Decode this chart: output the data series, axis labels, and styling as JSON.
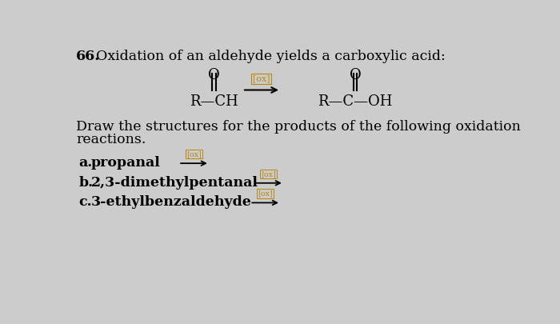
{
  "background_color": "#cccccc",
  "number_label": "66.",
  "title_text": "Oxidation of an aldehyde yields a carboxylic acid:",
  "title_fontsize": 12.5,
  "body_text_line1": "Draw the structures for the products of the following oxidation",
  "body_text_line2": "reactions.",
  "body_fontsize": 12.5,
  "arrow_color": "#b8860b",
  "items": [
    {
      "label": "a.",
      "compound": "propanal"
    },
    {
      "label": "b.",
      "compound": "2,3-dimethylpentanal"
    },
    {
      "label": "c.",
      "compound": "3-ethylbenzaldehyde"
    }
  ],
  "item_fontsize": 12.5
}
